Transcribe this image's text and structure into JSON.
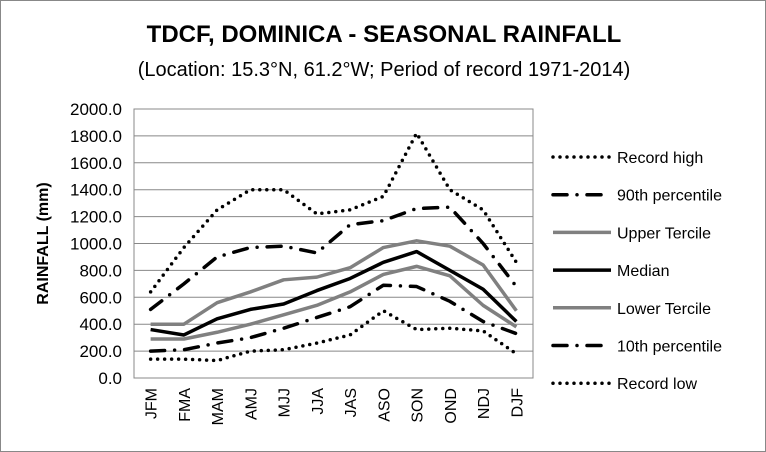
{
  "chart_data": {
    "type": "line",
    "title": "TDCF, DOMINICA - SEASONAL RAINFALL",
    "subtitle": "(Location: 15.3°N, 61.2°W; Period of record 1971-2014)",
    "xlabel": "",
    "ylabel": "RAINFALL (mm)",
    "ylim": [
      0,
      2000
    ],
    "yticks": [
      "0.0",
      "200.0",
      "400.0",
      "600.0",
      "800.0",
      "1000.0",
      "1200.0",
      "1400.0",
      "1600.0",
      "1800.0",
      "2000.0"
    ],
    "grid": true,
    "legend_position": "right",
    "categories": [
      "JFM",
      "FMA",
      "MAM",
      "AMJ",
      "MJJ",
      "JJA",
      "JAS",
      "ASO",
      "SON",
      "OND",
      "NDJ",
      "DJF"
    ],
    "series": [
      {
        "name": "Record high",
        "style": "dotted",
        "color": "#000000",
        "values": [
          640,
          970,
          1250,
          1400,
          1400,
          1220,
          1250,
          1350,
          1820,
          1400,
          1250,
          860
        ]
      },
      {
        "name": "90th percentile",
        "style": "dashdot",
        "color": "#000000",
        "values": [
          510,
          700,
          900,
          970,
          980,
          930,
          1140,
          1170,
          1260,
          1270,
          1000,
          680
        ]
      },
      {
        "name": "Upper Tercile",
        "style": "solid",
        "color": "#808080",
        "values": [
          400,
          400,
          560,
          640,
          730,
          750,
          820,
          970,
          1020,
          980,
          840,
          500
        ]
      },
      {
        "name": "Median",
        "style": "solid",
        "color": "#000000",
        "values": [
          360,
          320,
          440,
          510,
          550,
          650,
          740,
          860,
          940,
          800,
          660,
          420
        ]
      },
      {
        "name": "Lower Tercile",
        "style": "solid",
        "color": "#808080",
        "values": [
          290,
          290,
          340,
          400,
          470,
          540,
          640,
          770,
          830,
          760,
          540,
          380
        ]
      },
      {
        "name": "10th percentile",
        "style": "dashdot",
        "color": "#000000",
        "values": [
          200,
          210,
          260,
          300,
          370,
          450,
          530,
          690,
          680,
          570,
          420,
          330
        ]
      },
      {
        "name": "Record low",
        "style": "dotted",
        "color": "#000000",
        "values": [
          140,
          140,
          130,
          200,
          210,
          260,
          320,
          500,
          360,
          370,
          350,
          180
        ]
      }
    ]
  }
}
